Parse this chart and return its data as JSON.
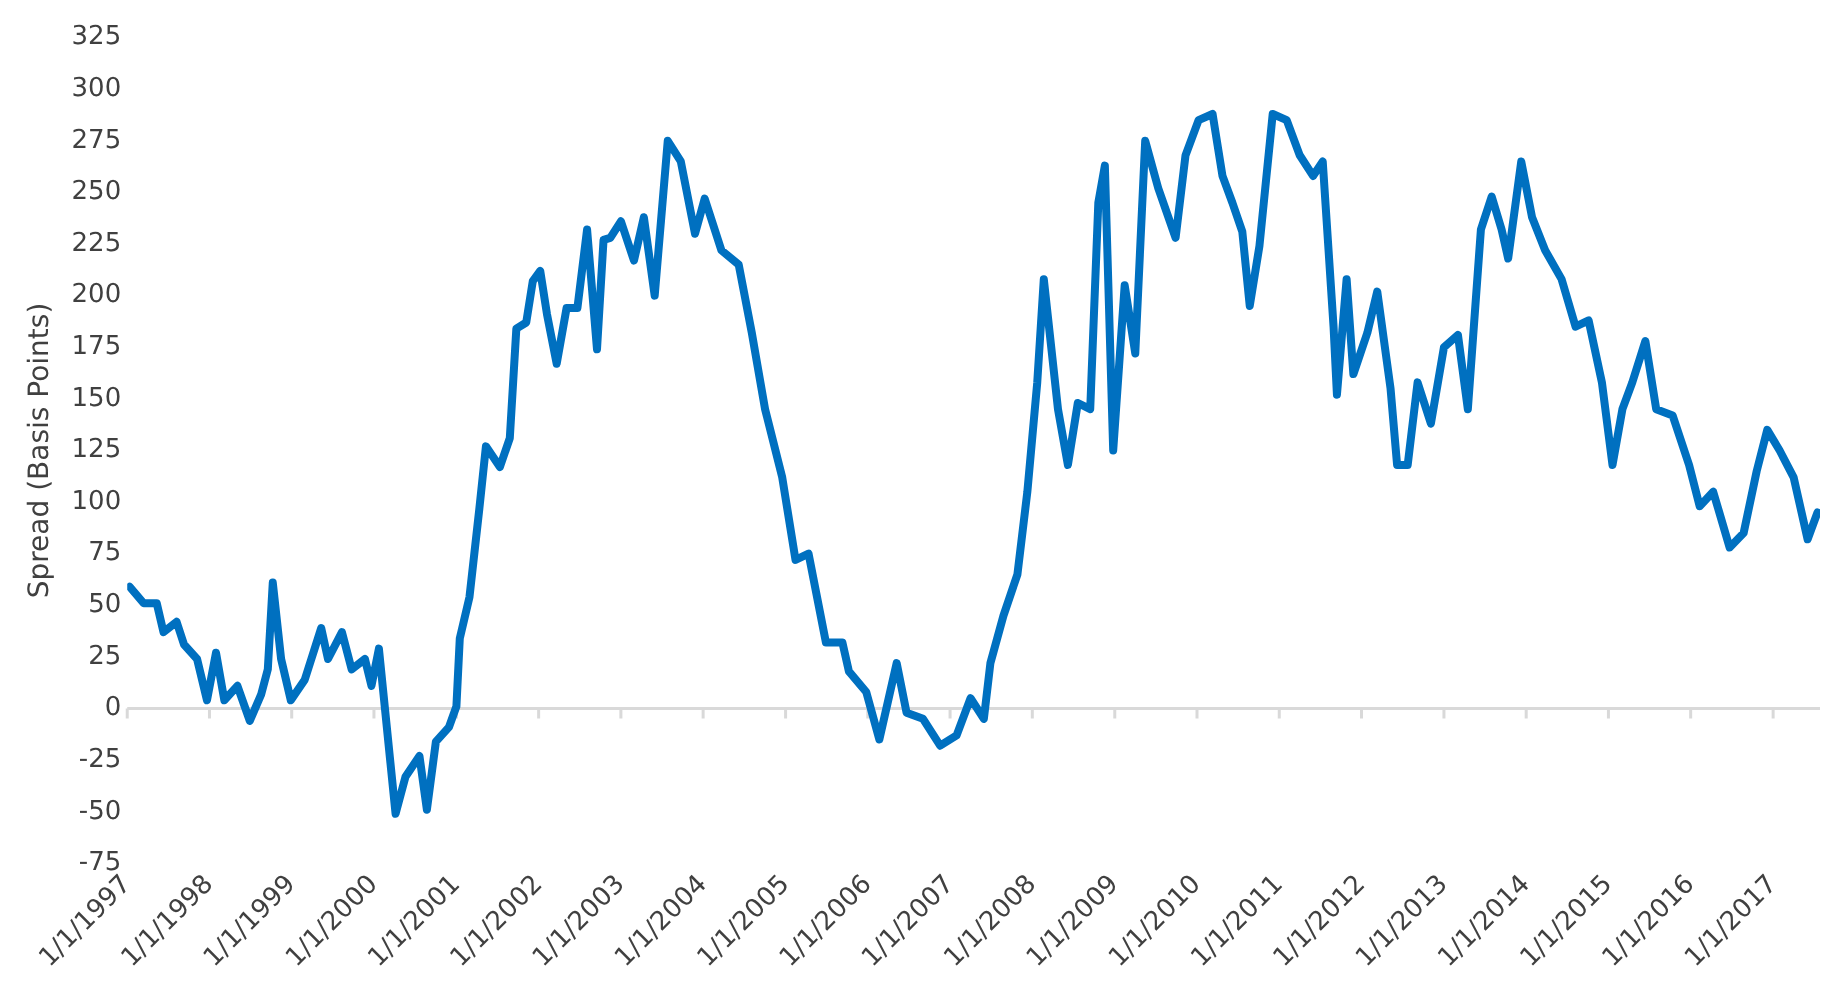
{
  "chart_data": {
    "type": "line",
    "ylabel": "Spread (Basis Points)",
    "ylim": [
      -75,
      325
    ],
    "yticks": [
      -75,
      -50,
      -25,
      0,
      25,
      50,
      75,
      100,
      125,
      150,
      175,
      200,
      225,
      250,
      275,
      300,
      325
    ],
    "xlim": [
      "1997-01-01",
      "2017-07-28"
    ],
    "xticks": [
      {
        "value": "1997-01-01",
        "label": "1/1/1997"
      },
      {
        "value": "1998-01-01",
        "label": "1/1/1998"
      },
      {
        "value": "1999-01-01",
        "label": "1/1/1999"
      },
      {
        "value": "2000-01-01",
        "label": "1/1/2000"
      },
      {
        "value": "2001-01-01",
        "label": "1/1/2001"
      },
      {
        "value": "2002-01-01",
        "label": "1/1/2002"
      },
      {
        "value": "2003-01-01",
        "label": "1/1/2003"
      },
      {
        "value": "2004-01-01",
        "label": "1/1/2004"
      },
      {
        "value": "2005-01-01",
        "label": "1/1/2005"
      },
      {
        "value": "2006-01-01",
        "label": "1/1/2006"
      },
      {
        "value": "2007-01-01",
        "label": "1/1/2007"
      },
      {
        "value": "2008-01-01",
        "label": "1/1/2008"
      },
      {
        "value": "2009-01-01",
        "label": "1/1/2009"
      },
      {
        "value": "2010-01-01",
        "label": "1/1/2010"
      },
      {
        "value": "2011-01-01",
        "label": "1/1/2011"
      },
      {
        "value": "2012-01-01",
        "label": "1/1/2012"
      },
      {
        "value": "2013-01-01",
        "label": "1/1/2013"
      },
      {
        "value": "2014-01-01",
        "label": "1/1/2014"
      },
      {
        "value": "2015-01-01",
        "label": "1/1/2015"
      },
      {
        "value": "2016-01-01",
        "label": "1/1/2016"
      },
      {
        "value": "2017-01-01",
        "label": "1/1/2017"
      }
    ],
    "x": [
      "1997-01-12",
      "1997-03-15",
      "1997-05-12",
      "1997-06-11",
      "1997-08-08",
      "1997-09-10",
      "1997-11-07",
      "1997-12-21",
      "1998-01-30",
      "1998-03-08",
      "1998-05-05",
      "1998-06-29",
      "1998-08-19",
      "1998-09-17",
      "1998-10-09",
      "1998-11-15",
      "1998-12-28",
      "1999-02-28",
      "1999-05-12",
      "1999-06-11",
      "1999-08-12",
      "1999-09-24",
      "1999-11-22",
      "1999-12-21",
      "2000-01-23",
      "2000-04-06",
      "2000-05-20",
      "2000-07-21",
      "2000-08-23",
      "2000-10-02",
      "2000-11-29",
      "2001-01-01",
      "2001-01-16",
      "2001-02-28",
      "2001-04-13",
      "2001-05-12",
      "2001-07-13",
      "2001-08-26",
      "2001-09-24",
      "2001-11-07",
      "2001-12-06",
      "2002-01-08",
      "2002-02-07",
      "2002-03-22",
      "2002-05-05",
      "2002-06-22",
      "2002-08-04",
      "2002-09-17",
      "2002-10-16",
      "2002-11-15",
      "2003-01-01",
      "2003-02-28",
      "2003-04-13",
      "2003-05-31",
      "2003-07-28",
      "2003-09-24",
      "2003-11-26",
      "2004-01-08",
      "2004-03-22",
      "2004-06-07",
      "2004-08-04",
      "2004-10-02",
      "2004-12-17",
      "2005-02-14",
      "2005-04-13",
      "2005-06-29",
      "2005-09-10",
      "2005-10-09",
      "2005-12-25",
      "2006-02-21",
      "2006-05-09",
      "2006-06-22",
      "2006-09-03",
      "2006-11-18",
      "2007-01-30",
      "2007-04-02",
      "2007-05-31",
      "2007-06-29",
      "2007-08-26",
      "2007-10-27",
      "2007-12-10",
      "2008-01-23",
      "2008-02-21",
      "2008-04-24",
      "2008-06-07",
      "2008-07-21",
      "2008-09-14",
      "2008-10-20",
      "2008-11-18",
      "2008-12-25",
      "2009-02-14",
      "2009-04-02",
      "2009-05-16",
      "2009-07-13",
      "2009-09-28",
      "2009-11-11",
      "2010-01-08",
      "2010-03-11",
      "2010-04-24",
      "2010-06-07",
      "2010-07-21",
      "2010-08-23",
      "2010-10-05",
      "2010-12-03",
      "2011-02-03",
      "2011-04-02",
      "2011-05-31",
      "2011-07-13",
      "2011-08-30",
      "2011-09-14",
      "2011-10-27",
      "2011-11-26",
      "2012-01-27",
      "2012-03-11",
      "2012-05-09",
      "2012-06-07",
      "2012-07-24",
      "2012-09-06",
      "2012-11-04",
      "2013-01-01",
      "2013-03-04",
      "2013-04-17",
      "2013-06-14",
      "2013-08-01",
      "2013-09-14",
      "2013-10-13",
      "2013-12-10",
      "2014-01-27",
      "2014-03-26",
      "2014-06-07",
      "2014-08-08",
      "2014-10-05",
      "2014-12-03",
      "2015-01-19",
      "2015-03-04",
      "2015-04-17",
      "2015-06-14",
      "2015-08-01",
      "2015-10-13",
      "2015-12-25",
      "2016-02-10",
      "2016-04-10",
      "2016-06-22",
      "2016-08-23",
      "2016-10-20",
      "2016-12-06",
      "2017-01-30",
      "2017-04-02",
      "2017-06-03",
      "2017-07-17"
    ],
    "series": [
      {
        "color": "#0070c0",
        "values": [
          59,
          51,
          51,
          37,
          42,
          31,
          24,
          4,
          27,
          4,
          11,
          -6,
          7,
          19,
          61,
          24,
          4,
          14,
          39,
          24,
          37,
          19,
          24,
          11,
          29,
          -51,
          -33,
          -23,
          -49,
          -16,
          -9,
          1,
          34,
          54,
          97,
          127,
          117,
          131,
          184,
          187,
          207,
          212,
          191,
          167,
          194,
          194,
          232,
          174,
          227,
          228,
          236,
          217,
          238,
          200,
          275,
          265,
          230,
          247,
          222,
          215,
          182,
          145,
          112,
          72,
          75,
          32,
          32,
          18,
          8,
          -15,
          22,
          -2,
          -5,
          -18,
          -13,
          5,
          -5,
          22,
          45,
          65,
          105,
          158,
          208,
          145,
          118,
          148,
          145,
          245,
          263,
          125,
          205,
          172,
          275,
          252,
          228,
          268,
          285,
          288,
          258,
          245,
          231,
          195,
          224,
          288,
          285,
          268,
          258,
          265,
          185,
          152,
          208,
          162,
          182,
          202,
          155,
          118,
          118,
          158,
          138,
          175,
          181,
          145,
          232,
          248,
          232,
          218,
          265,
          238,
          222,
          208,
          185,
          188,
          158,
          118,
          145,
          158,
          178,
          145,
          142,
          118,
          98,
          105,
          78,
          85,
          115,
          135,
          125,
          112,
          82,
          95
        ]
      }
    ],
    "ref_lines": [
      {
        "axis": "y",
        "value": 0,
        "color": "#d9d9d9"
      }
    ],
    "line_style": "solid",
    "marker": "none",
    "grid": false,
    "legend": false
  }
}
